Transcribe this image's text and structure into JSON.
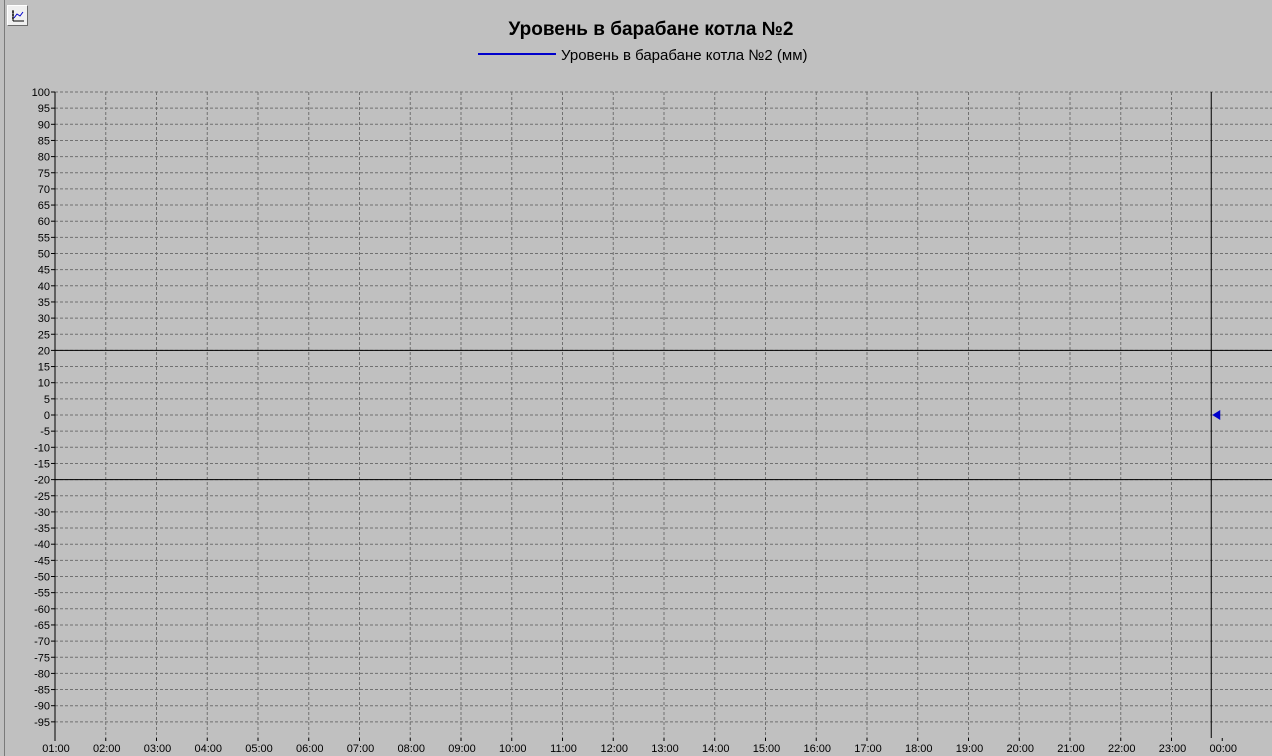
{
  "chart_data": {
    "type": "line",
    "title": "Уровень в барабане котла №2",
    "series": [
      {
        "name": "Уровень в барабане котла №2 (мм)",
        "color": "#0000cc",
        "values": []
      }
    ],
    "ylim": [
      -100,
      100
    ],
    "y_ticks": [
      100,
      95,
      90,
      85,
      80,
      75,
      70,
      65,
      60,
      55,
      50,
      45,
      40,
      35,
      30,
      25,
      20,
      15,
      10,
      5,
      0,
      -5,
      -10,
      -15,
      -20,
      -25,
      -30,
      -35,
      -40,
      -45,
      -50,
      -55,
      -60,
      -65,
      -70,
      -75,
      -80,
      -85,
      -90,
      -95
    ],
    "x_ticks": [
      "01:00",
      "02:00",
      "03:00",
      "04:00",
      "05:00",
      "06:00",
      "07:00",
      "08:00",
      "09:00",
      "10:00",
      "11:00",
      "12:00",
      "13:00",
      "14:00",
      "15:00",
      "16:00",
      "17:00",
      "18:00",
      "19:00",
      "20:00",
      "21:00",
      "22:00",
      "23:00",
      "00:00"
    ],
    "limit_lines": [
      20,
      -20
    ],
    "current_marker_value": 0,
    "grid": true,
    "legend_position": "top-center"
  },
  "colors": {
    "background": "#c0c0c0",
    "grid": "#707070",
    "series_line": "#0000cc",
    "axis": "#000000"
  },
  "icons": {
    "window": "chart-icon"
  }
}
